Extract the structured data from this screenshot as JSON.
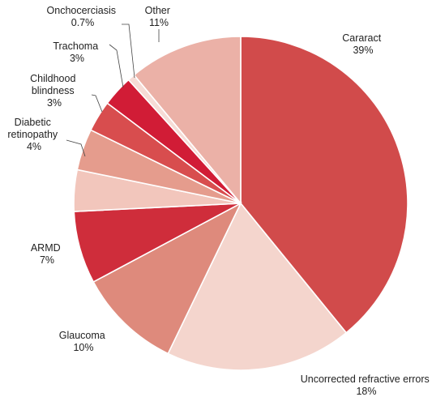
{
  "chart_data": {
    "type": "pie",
    "start": "12 o'clock, clockwise",
    "slices": [
      {
        "name": "Cararact",
        "pct_text": "39%",
        "value": 39,
        "color": "#d14b4b"
      },
      {
        "name": "Uncorrected refractive errors",
        "pct_text": "18%",
        "value": 18,
        "color": "#f4d5cd"
      },
      {
        "name": "Glaucoma",
        "pct_text": "10%",
        "value": 10,
        "color": "#de8a7c"
      },
      {
        "name": "ARMD",
        "pct_text": "7%",
        "value": 7,
        "color": "#cf2d3b"
      },
      {
        "name": "unlabeled slice 1",
        "pct_text": "",
        "value": 4,
        "color": "#f2c6bc"
      },
      {
        "name": "Diabetic retinopathy",
        "pct_text": "4%",
        "value": 4,
        "color": "#e59c8d"
      },
      {
        "name": "Childhood blindness",
        "pct_text": "3%",
        "value": 3,
        "color": "#d84d4e"
      },
      {
        "name": "Trachoma",
        "pct_text": "3%",
        "value": 3,
        "color": "#d11c36"
      },
      {
        "name": "Onchocerciasis",
        "pct_text": "0.7%",
        "value": 0.7,
        "color": "#f6dcd6"
      },
      {
        "name": "Other",
        "pct_text": "11%",
        "value": 11,
        "color": "#ebb1a7"
      }
    ]
  },
  "labels": {
    "cataract": {
      "line1": "Cararact",
      "line2": "39%"
    },
    "refractive": {
      "line1": "Uncorrected refractive errors",
      "line2": "18%"
    },
    "glaucoma": {
      "line1": "Glaucoma",
      "line2": "10%"
    },
    "armd": {
      "line1": "ARMD",
      "line2": "7%"
    },
    "diabetic": {
      "line1": "Diabetic",
      "line2": "retinopathy",
      "line3": "4%"
    },
    "childhood": {
      "line1": "Childhood",
      "line2": "blindness",
      "line3": "3%"
    },
    "trachoma": {
      "line1": "Trachoma",
      "line2": "3%"
    },
    "oncho": {
      "line1": "Onchocerciasis",
      "line2": "0.7%"
    },
    "other": {
      "line1": "Other",
      "line2": "11%"
    }
  }
}
